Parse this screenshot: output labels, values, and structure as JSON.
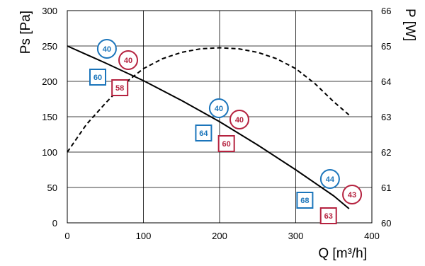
{
  "chart_data": {
    "type": "line",
    "title": "",
    "xlabel": "Q [m³/h]",
    "ylabel": "Ps [Pa]",
    "y2label": "P [W]",
    "xlim": [
      0,
      400
    ],
    "ylim": [
      0,
      300
    ],
    "y2lim": [
      60,
      66
    ],
    "x_ticks": [
      "0",
      "100",
      "200",
      "300",
      "400"
    ],
    "y_ticks": [
      "0",
      "50",
      "100",
      "150",
      "200",
      "250",
      "300"
    ],
    "y2_ticks": [
      "60",
      "61",
      "62",
      "63",
      "64",
      "65",
      "66"
    ],
    "grid": true,
    "series": [
      {
        "axis": "left",
        "style": "solid",
        "x": [
          0,
          50,
          100,
          150,
          200,
          250,
          300,
          350,
          370
        ],
        "values": [
          250,
          226,
          201,
          173,
          143,
          110,
          75,
          38,
          20
        ]
      },
      {
        "axis": "right",
        "style": "dashed",
        "x": [
          0,
          25,
          50,
          75,
          100,
          125,
          150,
          175,
          200,
          225,
          250,
          275,
          300,
          325,
          350,
          370
        ],
        "values": [
          62.0,
          62.78,
          63.38,
          63.94,
          64.36,
          64.64,
          64.82,
          64.92,
          64.95,
          64.92,
          64.82,
          64.64,
          64.36,
          63.94,
          63.42,
          63.05
        ]
      }
    ],
    "annotations": [
      {
        "shape": "circle",
        "color": "#1b75bb",
        "label": "40",
        "x": 52,
        "y": 246
      },
      {
        "shape": "circle",
        "color": "#b5223f",
        "label": "40",
        "x": 80,
        "y": 230
      },
      {
        "shape": "square",
        "color": "#1b75bb",
        "label": "60",
        "x": 40,
        "y": 206
      },
      {
        "shape": "square",
        "color": "#b5223f",
        "label": "58",
        "x": 69,
        "y": 191
      },
      {
        "shape": "circle",
        "color": "#1b75bb",
        "label": "40",
        "x": 199,
        "y": 162
      },
      {
        "shape": "circle",
        "color": "#b5223f",
        "label": "40",
        "x": 226,
        "y": 146
      },
      {
        "shape": "square",
        "color": "#1b75bb",
        "label": "64",
        "x": 179,
        "y": 127
      },
      {
        "shape": "square",
        "color": "#b5223f",
        "label": "60",
        "x": 209,
        "y": 112
      },
      {
        "shape": "circle",
        "color": "#1b75bb",
        "label": "44",
        "x": 345,
        "y": 62
      },
      {
        "shape": "circle",
        "color": "#b5223f",
        "label": "43",
        "x": 374,
        "y": 40
      },
      {
        "shape": "square",
        "color": "#1b75bb",
        "label": "68",
        "x": 312,
        "y": 32
      },
      {
        "shape": "square",
        "color": "#b5223f",
        "label": "63",
        "x": 343,
        "y": 10
      }
    ]
  }
}
